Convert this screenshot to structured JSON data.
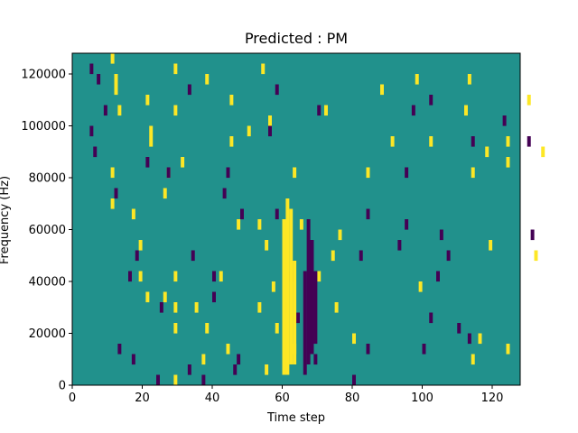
{
  "chart_data": {
    "type": "heatmap",
    "title": "Predicted : PM",
    "xlabel": "Time step",
    "ylabel": "Frequency (Hz)",
    "xlim": [
      0,
      128
    ],
    "ylim": [
      0,
      128000
    ],
    "x_ticks": [
      0,
      20,
      40,
      60,
      80,
      100,
      120
    ],
    "y_ticks": [
      0,
      20000,
      40000,
      60000,
      80000,
      100000,
      120000
    ],
    "x_tick_labels": [
      "0",
      "20",
      "40",
      "60",
      "80",
      "100",
      "120"
    ],
    "y_tick_labels": [
      "0",
      "20000",
      "40000",
      "60000",
      "80000",
      "100000",
      "120000"
    ],
    "grid": false,
    "colormap": "viridis",
    "colors": {
      "background": "#21918c",
      "high": "#fde725",
      "low": "#440154"
    },
    "cell_height": 4000,
    "levels": {
      "high": 1,
      "low": -1,
      "background": 0
    },
    "high_cells": [
      [
        11,
        124000
      ],
      [
        29,
        120000
      ],
      [
        54,
        120000
      ],
      [
        12,
        116000
      ],
      [
        38,
        116000
      ],
      [
        12,
        112000
      ],
      [
        88,
        112000
      ],
      [
        98,
        116000
      ],
      [
        113,
        116000
      ],
      [
        45,
        108000
      ],
      [
        21,
        108000
      ],
      [
        13,
        104000
      ],
      [
        29,
        104000
      ],
      [
        112,
        104000
      ],
      [
        72,
        104000
      ],
      [
        130,
        108000
      ],
      [
        56,
        100000
      ],
      [
        22,
        96000
      ],
      [
        50,
        96000
      ],
      [
        22,
        92000
      ],
      [
        45,
        92000
      ],
      [
        91,
        92000
      ],
      [
        102,
        92000
      ],
      [
        124,
        92000
      ],
      [
        118,
        88000
      ],
      [
        134,
        88000
      ],
      [
        124,
        84000
      ],
      [
        31,
        84000
      ],
      [
        11,
        80000
      ],
      [
        27,
        80000
      ],
      [
        63,
        80000
      ],
      [
        114,
        80000
      ],
      [
        84,
        80000
      ],
      [
        26,
        72000
      ],
      [
        11,
        68000
      ],
      [
        17,
        64000
      ],
      [
        47,
        60000
      ],
      [
        53,
        60000
      ],
      [
        65,
        60000
      ],
      [
        76,
        56000
      ],
      [
        119,
        52000
      ],
      [
        19,
        52000
      ],
      [
        55,
        52000
      ],
      [
        74,
        48000
      ],
      [
        132,
        48000
      ],
      [
        19,
        40000
      ],
      [
        29,
        40000
      ],
      [
        42,
        40000
      ],
      [
        57,
        36000
      ],
      [
        70,
        40000
      ],
      [
        99,
        36000
      ],
      [
        21,
        32000
      ],
      [
        26,
        32000
      ],
      [
        29,
        28000
      ],
      [
        35,
        28000
      ],
      [
        53,
        28000
      ],
      [
        75,
        28000
      ],
      [
        29,
        20000
      ],
      [
        38,
        20000
      ],
      [
        58,
        20000
      ],
      [
        80,
        16000
      ],
      [
        116,
        16000
      ],
      [
        114,
        8000
      ],
      [
        124,
        12000
      ],
      [
        37,
        8000
      ],
      [
        44,
        12000
      ],
      [
        63,
        12000
      ],
      [
        55,
        4000
      ],
      [
        29,
        0
      ]
    ],
    "low_cells": [
      [
        5,
        120000
      ],
      [
        7,
        116000
      ],
      [
        33,
        112000
      ],
      [
        58,
        112000
      ],
      [
        9,
        104000
      ],
      [
        70,
        104000
      ],
      [
        97,
        104000
      ],
      [
        102,
        108000
      ],
      [
        123,
        100000
      ],
      [
        5,
        96000
      ],
      [
        56,
        96000
      ],
      [
        114,
        92000
      ],
      [
        130,
        92000
      ],
      [
        6,
        88000
      ],
      [
        21,
        84000
      ],
      [
        44,
        80000
      ],
      [
        95,
        80000
      ],
      [
        27,
        80000
      ],
      [
        12,
        72000
      ],
      [
        43,
        72000
      ],
      [
        48,
        64000
      ],
      [
        58,
        64000
      ],
      [
        84,
        64000
      ],
      [
        95,
        60000
      ],
      [
        105,
        56000
      ],
      [
        131,
        56000
      ],
      [
        93,
        52000
      ],
      [
        18,
        48000
      ],
      [
        34,
        48000
      ],
      [
        82,
        48000
      ],
      [
        107,
        48000
      ],
      [
        16,
        40000
      ],
      [
        40,
        40000
      ],
      [
        62,
        40000
      ],
      [
        104,
        40000
      ],
      [
        40,
        32000
      ],
      [
        25,
        28000
      ],
      [
        60,
        28000
      ],
      [
        64,
        24000
      ],
      [
        102,
        24000
      ],
      [
        110,
        20000
      ],
      [
        69,
        16000
      ],
      [
        84,
        12000
      ],
      [
        100,
        12000
      ],
      [
        113,
        16000
      ],
      [
        13,
        12000
      ],
      [
        17,
        8000
      ],
      [
        47,
        8000
      ],
      [
        69,
        8000
      ],
      [
        33,
        4000
      ],
      [
        46,
        4000
      ],
      [
        24,
        0
      ],
      [
        37,
        0
      ],
      [
        80,
        0
      ]
    ],
    "high_columns": [
      {
        "x": 60,
        "y_from": 4000,
        "y_to": 64000
      },
      {
        "x": 61,
        "y_from": 4000,
        "y_to": 72000
      },
      {
        "x": 62,
        "y_from": 8000,
        "y_to": 68000
      },
      {
        "x": 63,
        "y_from": 8000,
        "y_to": 48000
      }
    ],
    "low_columns": [
      {
        "x": 66,
        "y_from": 4000,
        "y_to": 44000
      },
      {
        "x": 67,
        "y_from": 8000,
        "y_to": 64000
      },
      {
        "x": 68,
        "y_from": 12000,
        "y_to": 56000
      },
      {
        "x": 69,
        "y_from": 20000,
        "y_to": 44000
      }
    ]
  }
}
